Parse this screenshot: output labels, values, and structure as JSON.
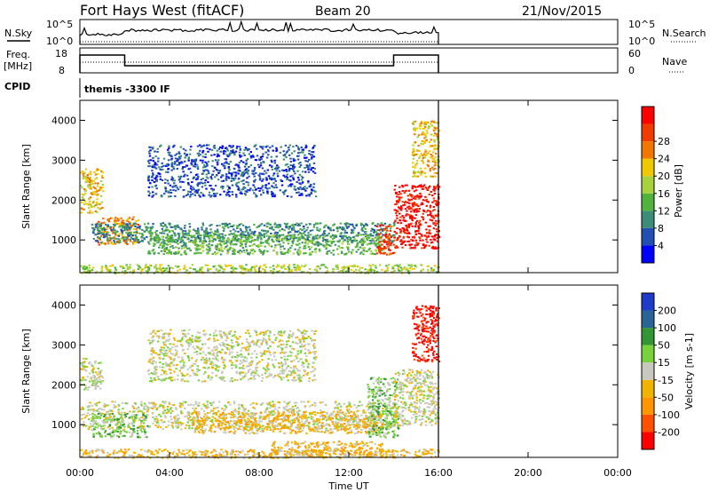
{
  "header": {
    "title": "Fort Hays West (fitACF)",
    "beam": "Beam 20",
    "date": "21/Nov/2015"
  },
  "side_labels": {
    "nsky": "N.Sky",
    "freq_line1": "Freq.",
    "freq_line2": "[MHz]",
    "cpid": "CPID",
    "nsearch": "N.Search",
    "nave": "Nave",
    "nsky_ticks": [
      "10^5",
      "10^0"
    ],
    "freq_ticks": [
      "18",
      "8"
    ],
    "nsearch_ticks": [
      "10^5",
      "10^0"
    ],
    "nave_ticks": [
      "60",
      "0"
    ]
  },
  "cpid_text": "themis -3300 IF",
  "colors": {
    "power": [
      "#0000ff",
      "#2050b4",
      "#3c8c78",
      "#50b43c",
      "#a8d23c",
      "#f0c800",
      "#f07800",
      "#f03c00",
      "#ff0000"
    ],
    "velocity": [
      "#ff0000",
      "#ff5000",
      "#ff9600",
      "#f0b400",
      "#c8c8be",
      "#78d23c",
      "#329632",
      "#286496",
      "#1e3cc8"
    ],
    "ground_scatter": "#c8c8be"
  },
  "chart_data": [
    {
      "type": "heatmap",
      "name_in_figure": "power",
      "xlabel": "",
      "ylabel": "Slant Range [km]",
      "x_ticks": [
        "00:00",
        "04:00",
        "08:00",
        "12:00",
        "16:00",
        "20:00",
        "00:00"
      ],
      "x_hours": [
        0,
        4,
        8,
        12,
        16,
        20,
        24
      ],
      "xlim_hours": [
        0,
        24
      ],
      "data_end_hour": 16,
      "y_ticks": [
        1000,
        2000,
        3000,
        4000
      ],
      "ylim": [
        180,
        4500
      ],
      "colorbar": {
        "label": "Power [dB]",
        "tick_labels": [
          "4",
          "8",
          "12",
          "16",
          "20",
          "24",
          "28"
        ],
        "range": [
          0,
          32
        ]
      },
      "scatter_regions": [
        {
          "t_start": 0.0,
          "t_end": 1.0,
          "r_min": 1700,
          "r_max": 2800,
          "level": 5
        },
        {
          "t_start": 0.7,
          "t_end": 2.6,
          "r_min": 900,
          "r_max": 1600,
          "level": 6
        },
        {
          "t_start": 0.5,
          "t_end": 14.0,
          "r_min": 950,
          "r_max": 1450,
          "level": 2
        },
        {
          "t_start": 3.0,
          "t_end": 13.5,
          "r_min": 650,
          "r_max": 1150,
          "level": 3
        },
        {
          "t_start": 13.2,
          "t_end": 14.0,
          "r_min": 650,
          "r_max": 1400,
          "level": 7
        },
        {
          "t_start": 14.0,
          "t_end": 16.0,
          "r_min": 800,
          "r_max": 2400,
          "level": 8
        },
        {
          "t_start": 0.0,
          "t_end": 16.0,
          "r_min": 180,
          "r_max": 400,
          "level": 4
        },
        {
          "t_start": 3.0,
          "t_end": 10.5,
          "r_min": 2100,
          "r_max": 3400,
          "level": 1
        },
        {
          "t_start": 14.8,
          "t_end": 16.0,
          "r_min": 2600,
          "r_max": 4000,
          "level": 5
        }
      ]
    },
    {
      "type": "heatmap",
      "name_in_figure": "velocity",
      "xlabel": "Time UT",
      "ylabel": "Slant Range [km]",
      "x_ticks": [
        "00:00",
        "04:00",
        "08:00",
        "12:00",
        "16:00",
        "20:00",
        "00:00"
      ],
      "x_hours": [
        0,
        4,
        8,
        12,
        16,
        20,
        24
      ],
      "xlim_hours": [
        0,
        24
      ],
      "data_end_hour": 16,
      "y_ticks": [
        1000,
        2000,
        3000,
        4000
      ],
      "ylim": [
        180,
        4500
      ],
      "colorbar": {
        "label": "Velocity [m s-1]",
        "tick_labels": [
          "-200",
          "-100",
          "-50",
          "-15",
          "15",
          "50",
          "100",
          "200"
        ],
        "range": [
          -250,
          250
        ]
      },
      "scatter_regions": [
        {
          "t_start": 0.0,
          "t_end": 1.0,
          "r_min": 1900,
          "r_max": 2700,
          "level": 4
        },
        {
          "t_start": 0.0,
          "t_end": 14.0,
          "r_min": 900,
          "r_max": 1600,
          "level": 4
        },
        {
          "t_start": 0.5,
          "t_end": 3.0,
          "r_min": 700,
          "r_max": 1300,
          "level": 5
        },
        {
          "t_start": 5.0,
          "t_end": 13.5,
          "r_min": 800,
          "r_max": 1350,
          "level": 3
        },
        {
          "t_start": 8.5,
          "t_end": 13.5,
          "r_min": 250,
          "r_max": 600,
          "level": 3
        },
        {
          "t_start": 12.8,
          "t_end": 14.2,
          "r_min": 700,
          "r_max": 2200,
          "level": 5
        },
        {
          "t_start": 14.0,
          "t_end": 16.0,
          "r_min": 1000,
          "r_max": 2400,
          "level": 4
        },
        {
          "t_start": 0.0,
          "t_end": 16.0,
          "r_min": 180,
          "r_max": 400,
          "level": 3
        },
        {
          "t_start": 3.0,
          "t_end": 10.5,
          "r_min": 2100,
          "r_max": 3400,
          "level": 4
        },
        {
          "t_start": 14.8,
          "t_end": 16.0,
          "r_min": 2600,
          "r_max": 4000,
          "level": 0
        }
      ]
    }
  ]
}
